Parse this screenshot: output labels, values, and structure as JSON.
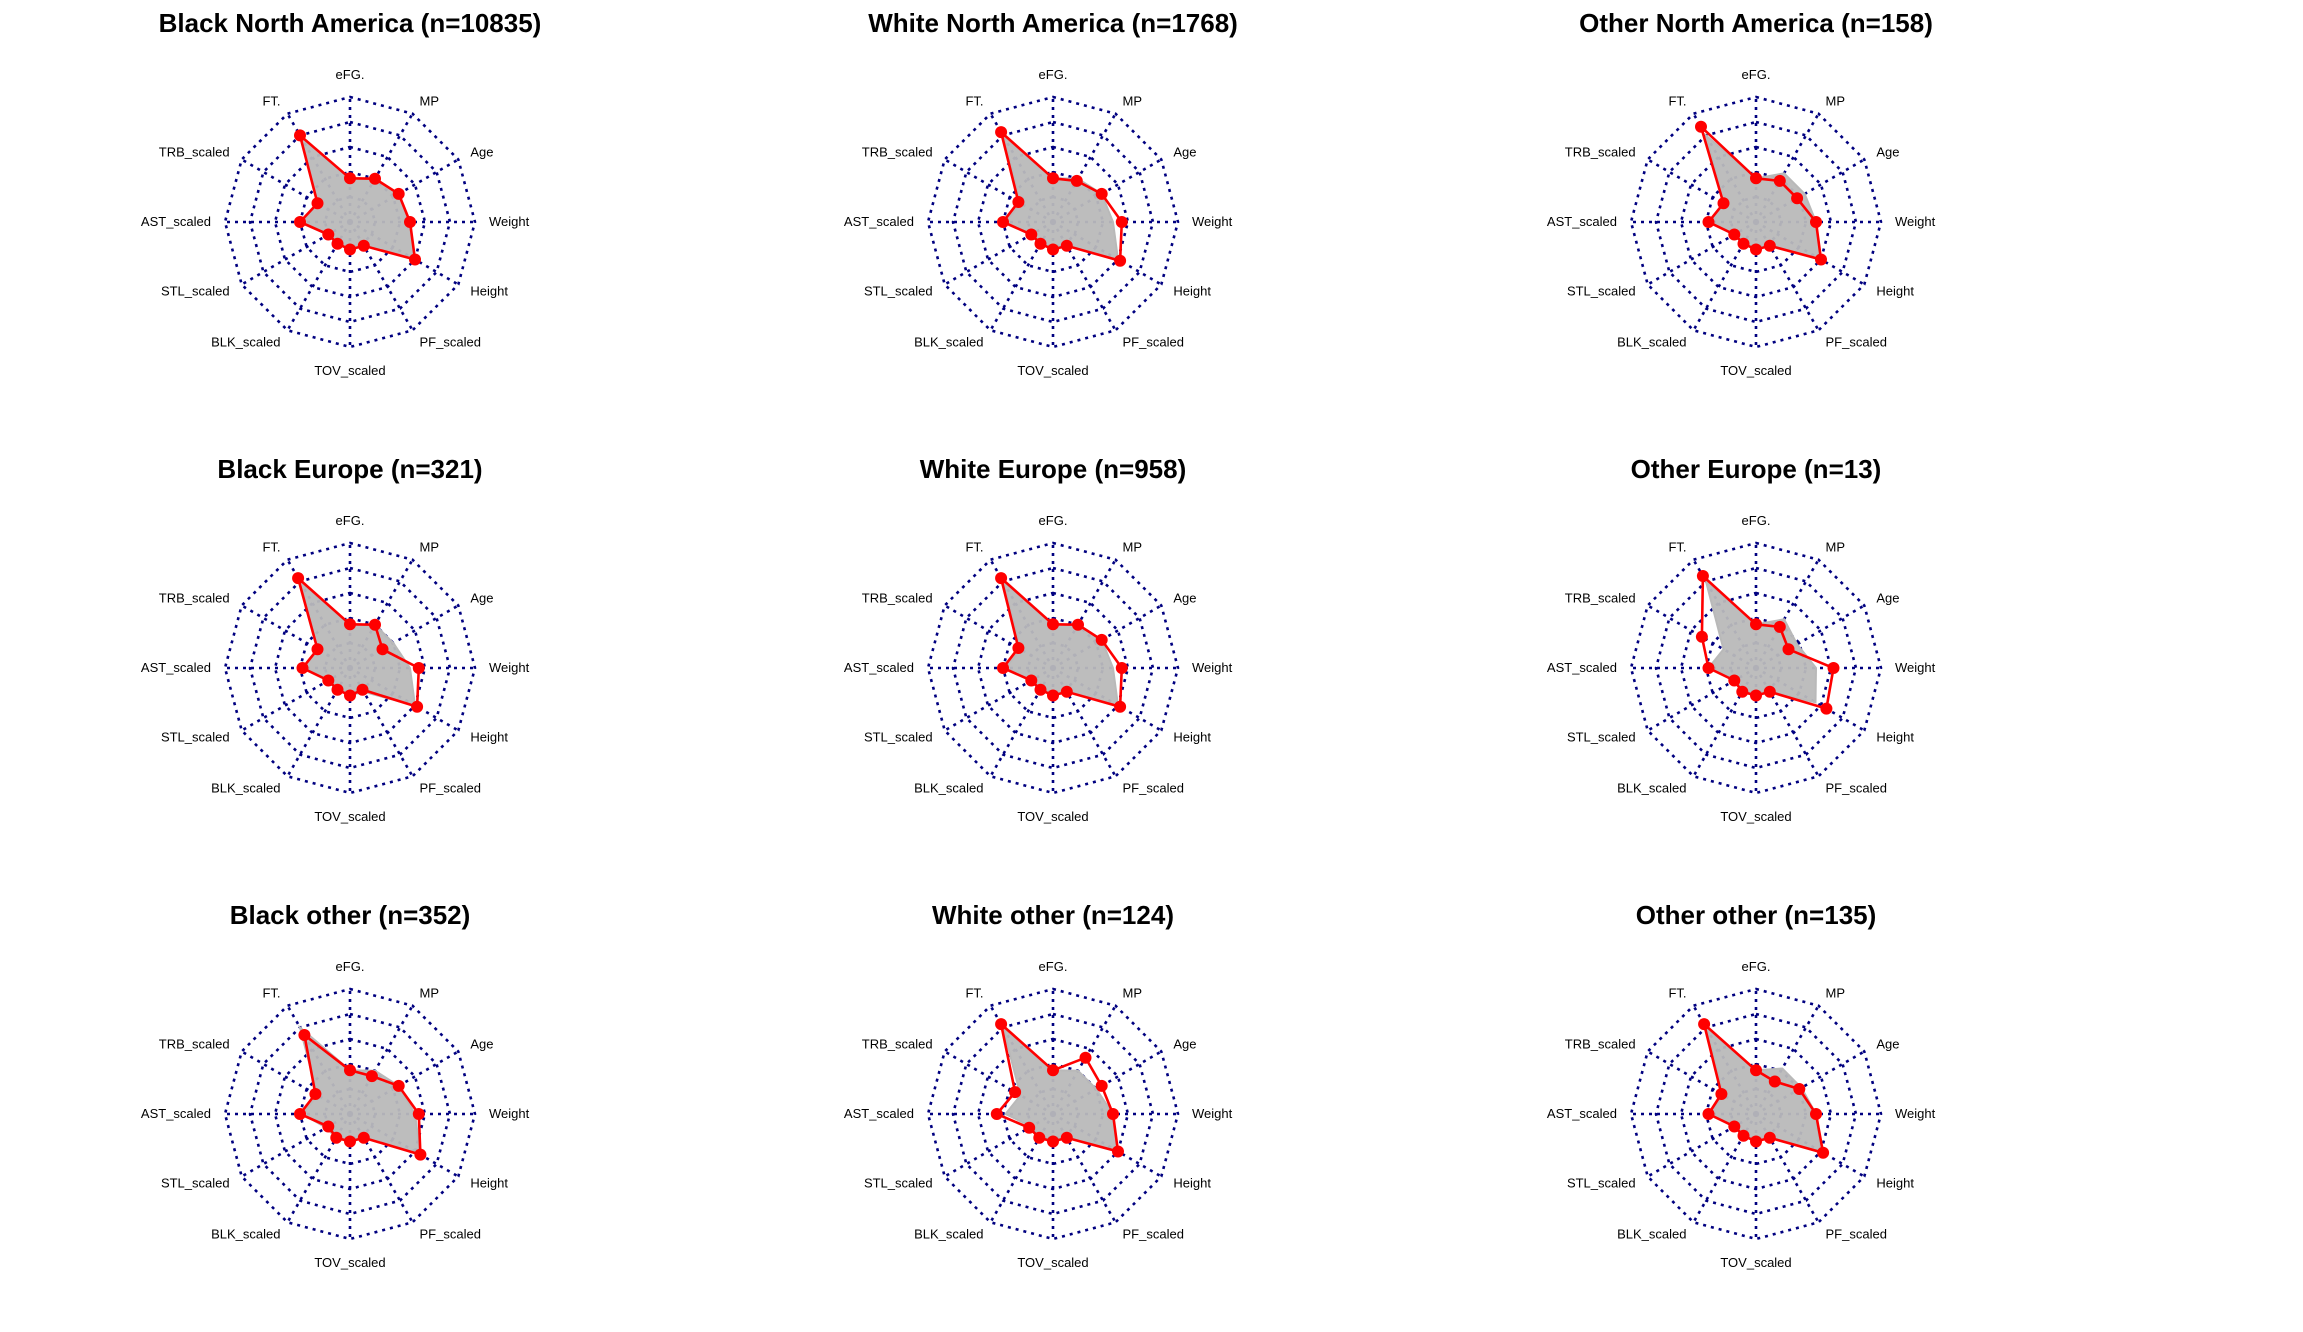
{
  "chart_data": [
    {
      "type": "radar",
      "title": "Black North America (n=10835)",
      "axes": [
        "eFG.",
        "MP",
        "Age",
        "Weight",
        "Height",
        "PF_scaled",
        "TOV_scaled",
        "BLK_scaled",
        "STL_scaled",
        "AST_scaled",
        "TRB_scaled",
        "FT."
      ],
      "range": [
        0,
        1
      ],
      "rings": 5,
      "series": [
        {
          "role": "reference",
          "values": [
            0.35,
            0.4,
            0.45,
            0.48,
            0.6,
            0.22,
            0.22,
            0.2,
            0.2,
            0.38,
            0.3,
            0.8
          ]
        },
        {
          "role": "group",
          "values": [
            0.35,
            0.4,
            0.45,
            0.48,
            0.6,
            0.22,
            0.22,
            0.2,
            0.2,
            0.4,
            0.3,
            0.8
          ]
        }
      ]
    },
    {
      "type": "radar",
      "title": "White North America (n=1768)",
      "axes": [
        "eFG.",
        "MP",
        "Age",
        "Weight",
        "Height",
        "PF_scaled",
        "TOV_scaled",
        "BLK_scaled",
        "STL_scaled",
        "AST_scaled",
        "TRB_scaled",
        "FT."
      ],
      "range": [
        0,
        1
      ],
      "rings": 5,
      "series": [
        {
          "role": "reference",
          "values": [
            0.35,
            0.4,
            0.45,
            0.48,
            0.6,
            0.22,
            0.22,
            0.2,
            0.2,
            0.38,
            0.3,
            0.8
          ]
        },
        {
          "role": "group",
          "values": [
            0.35,
            0.38,
            0.45,
            0.55,
            0.62,
            0.22,
            0.22,
            0.2,
            0.2,
            0.4,
            0.32,
            0.83
          ]
        }
      ]
    },
    {
      "type": "radar",
      "title": "Other North America (n=158)",
      "axes": [
        "eFG.",
        "MP",
        "Age",
        "Weight",
        "Height",
        "PF_scaled",
        "TOV_scaled",
        "BLK_scaled",
        "STL_scaled",
        "AST_scaled",
        "TRB_scaled",
        "FT."
      ],
      "range": [
        0,
        1
      ],
      "rings": 5,
      "series": [
        {
          "role": "reference",
          "values": [
            0.35,
            0.45,
            0.45,
            0.48,
            0.6,
            0.22,
            0.22,
            0.2,
            0.2,
            0.38,
            0.3,
            0.8
          ]
        },
        {
          "role": "group",
          "values": [
            0.35,
            0.38,
            0.38,
            0.48,
            0.6,
            0.22,
            0.22,
            0.2,
            0.2,
            0.38,
            0.3,
            0.88
          ]
        }
      ]
    },
    {
      "type": "radar",
      "title": "Black Europe (n=321)",
      "axes": [
        "eFG.",
        "MP",
        "Age",
        "Weight",
        "Height",
        "PF_scaled",
        "TOV_scaled",
        "BLK_scaled",
        "STL_scaled",
        "AST_scaled",
        "TRB_scaled",
        "FT."
      ],
      "range": [
        0,
        1
      ],
      "rings": 5,
      "series": [
        {
          "role": "reference",
          "values": [
            0.35,
            0.4,
            0.4,
            0.48,
            0.6,
            0.22,
            0.22,
            0.2,
            0.2,
            0.38,
            0.3,
            0.8
          ]
        },
        {
          "role": "group",
          "values": [
            0.35,
            0.4,
            0.3,
            0.55,
            0.62,
            0.2,
            0.22,
            0.2,
            0.2,
            0.38,
            0.3,
            0.83
          ]
        }
      ]
    },
    {
      "type": "radar",
      "title": "White Europe (n=958)",
      "axes": [
        "eFG.",
        "MP",
        "Age",
        "Weight",
        "Height",
        "PF_scaled",
        "TOV_scaled",
        "BLK_scaled",
        "STL_scaled",
        "AST_scaled",
        "TRB_scaled",
        "FT."
      ],
      "range": [
        0,
        1
      ],
      "rings": 5,
      "series": [
        {
          "role": "reference",
          "values": [
            0.35,
            0.4,
            0.45,
            0.48,
            0.6,
            0.22,
            0.22,
            0.2,
            0.2,
            0.38,
            0.3,
            0.8
          ]
        },
        {
          "role": "group",
          "values": [
            0.35,
            0.4,
            0.45,
            0.55,
            0.62,
            0.22,
            0.22,
            0.2,
            0.2,
            0.4,
            0.32,
            0.83
          ]
        }
      ]
    },
    {
      "type": "radar",
      "title": "Other Europe (n=13)",
      "axes": [
        "eFG.",
        "MP",
        "Age",
        "Weight",
        "Height",
        "PF_scaled",
        "TOV_scaled",
        "BLK_scaled",
        "STL_scaled",
        "AST_scaled",
        "TRB_scaled",
        "FT."
      ],
      "range": [
        0,
        1
      ],
      "rings": 5,
      "series": [
        {
          "role": "reference",
          "values": [
            0.35,
            0.45,
            0.38,
            0.48,
            0.55,
            0.22,
            0.22,
            0.2,
            0.2,
            0.38,
            0.3,
            0.8
          ]
        },
        {
          "role": "group",
          "values": [
            0.35,
            0.38,
            0.3,
            0.62,
            0.65,
            0.22,
            0.22,
            0.22,
            0.2,
            0.38,
            0.5,
            0.85
          ]
        }
      ]
    },
    {
      "type": "radar",
      "title": "Black other (n=352)",
      "axes": [
        "eFG.",
        "MP",
        "Age",
        "Weight",
        "Height",
        "PF_scaled",
        "TOV_scaled",
        "BLK_scaled",
        "STL_scaled",
        "AST_scaled",
        "TRB_scaled",
        "FT."
      ],
      "range": [
        0,
        1
      ],
      "rings": 5,
      "series": [
        {
          "role": "reference",
          "values": [
            0.35,
            0.4,
            0.45,
            0.52,
            0.65,
            0.22,
            0.22,
            0.22,
            0.22,
            0.38,
            0.3,
            0.8
          ]
        },
        {
          "role": "group",
          "values": [
            0.35,
            0.35,
            0.45,
            0.55,
            0.65,
            0.22,
            0.22,
            0.22,
            0.2,
            0.4,
            0.32,
            0.73
          ]
        }
      ]
    },
    {
      "type": "radar",
      "title": "White other (n=124)",
      "axes": [
        "eFG.",
        "MP",
        "Age",
        "Weight",
        "Height",
        "PF_scaled",
        "TOV_scaled",
        "BLK_scaled",
        "STL_scaled",
        "AST_scaled",
        "TRB_scaled",
        "FT."
      ],
      "range": [
        0,
        1
      ],
      "rings": 5,
      "series": [
        {
          "role": "reference",
          "values": [
            0.35,
            0.4,
            0.4,
            0.48,
            0.6,
            0.22,
            0.22,
            0.2,
            0.2,
            0.38,
            0.3,
            0.8
          ]
        },
        {
          "role": "group",
          "values": [
            0.35,
            0.52,
            0.45,
            0.48,
            0.6,
            0.22,
            0.22,
            0.22,
            0.22,
            0.45,
            0.35,
            0.83
          ]
        }
      ]
    },
    {
      "type": "radar",
      "title": "Other other (n=135)",
      "axes": [
        "eFG.",
        "MP",
        "Age",
        "Weight",
        "Height",
        "PF_scaled",
        "TOV_scaled",
        "BLK_scaled",
        "STL_scaled",
        "AST_scaled",
        "TRB_scaled",
        "FT."
      ],
      "range": [
        0,
        1
      ],
      "rings": 5,
      "series": [
        {
          "role": "reference",
          "values": [
            0.35,
            0.42,
            0.42,
            0.48,
            0.6,
            0.22,
            0.22,
            0.2,
            0.2,
            0.38,
            0.3,
            0.8
          ]
        },
        {
          "role": "group",
          "values": [
            0.35,
            0.3,
            0.4,
            0.48,
            0.62,
            0.22,
            0.22,
            0.2,
            0.2,
            0.38,
            0.32,
            0.83
          ]
        }
      ]
    }
  ],
  "colors": {
    "grid": "#000080",
    "reference_fill": "#b9b9b9",
    "group_line": "#ff0000",
    "group_point": "#ff0000",
    "axis_text": "#000000"
  }
}
